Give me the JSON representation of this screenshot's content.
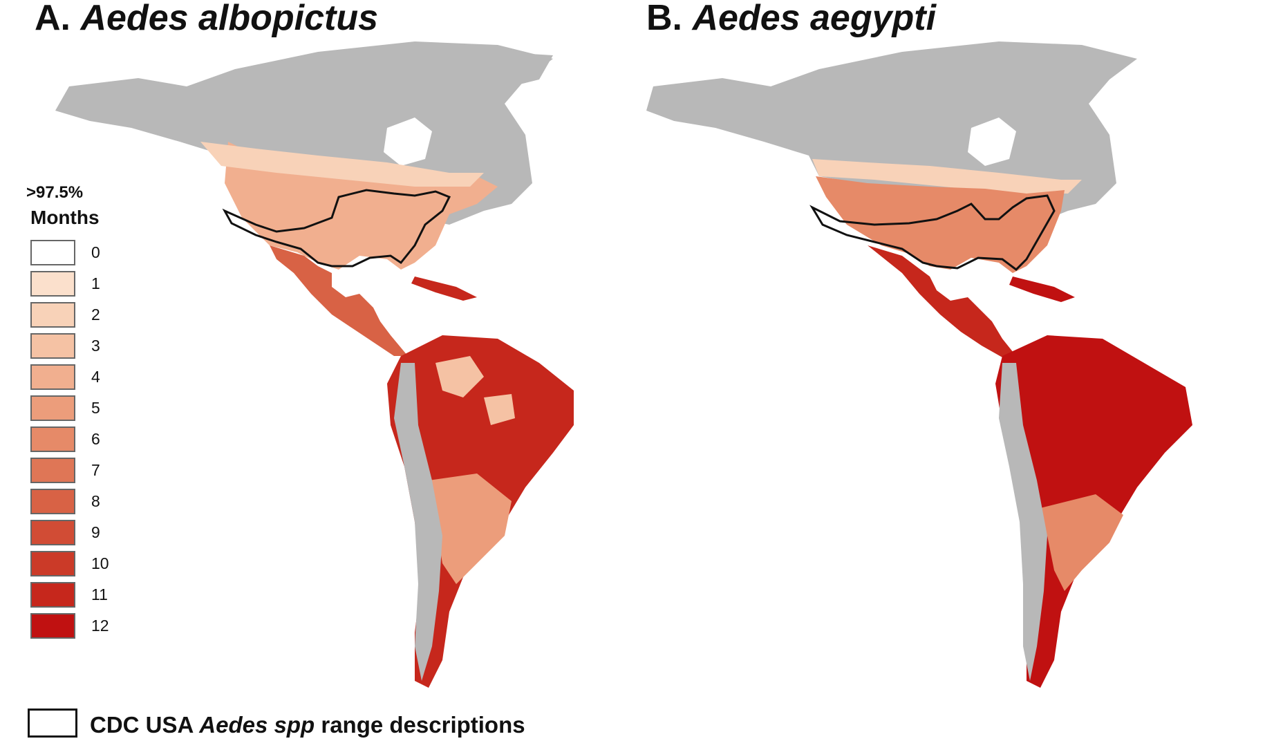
{
  "panel_a": {
    "prefix": "A.",
    "species": "Aedes albopictus"
  },
  "panel_b": {
    "prefix": "B.",
    "species": "Aedes aegypti"
  },
  "legend": {
    "heading_line1": ">97.5%",
    "heading_line2": "Months",
    "items": [
      {
        "label": "0",
        "color": "#ffffff"
      },
      {
        "label": "1",
        "color": "#fbe0cc"
      },
      {
        "label": "2",
        "color": "#f8d2b8"
      },
      {
        "label": "3",
        "color": "#f5c2a4"
      },
      {
        "label": "4",
        "color": "#f1af8f"
      },
      {
        "label": "5",
        "color": "#ec9d7b"
      },
      {
        "label": "6",
        "color": "#e68a68"
      },
      {
        "label": "7",
        "color": "#df7656"
      },
      {
        "label": "8",
        "color": "#d86245"
      },
      {
        "label": "9",
        "color": "#d14c35"
      },
      {
        "label": "10",
        "color": "#cb3a28"
      },
      {
        "label": "11",
        "color": "#c6271c"
      },
      {
        "label": "12",
        "color": "#c01111"
      }
    ],
    "cdc_prefix": "CDC USA",
    "cdc_italic": "Aedes spp",
    "cdc_suffix": "range descriptions"
  },
  "colors": {
    "land_no_data": "#b8b8b8",
    "outline": "#111111"
  }
}
